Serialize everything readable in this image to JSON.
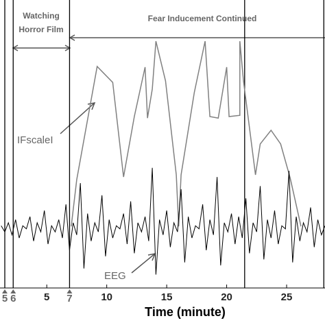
{
  "chart_data": {
    "type": "line",
    "x_label": "Time (minute)",
    "xlim": [
      1.1,
      28.2
    ],
    "ylim": [
      0,
      100
    ],
    "xticks": [
      5,
      10,
      15,
      20,
      25
    ],
    "markers": [
      {
        "x": 1.5,
        "label": "5"
      },
      {
        "x": 2.2,
        "label": "6"
      },
      {
        "x": 6.9,
        "label": "7"
      }
    ],
    "event_lines": [
      21.5,
      28.1
    ],
    "annotations": {
      "watching": [
        "Watching",
        "Horror Film"
      ],
      "fear": "Fear Inducement Continued",
      "ifscale": "IFscaleI",
      "eeg": "EEG"
    },
    "series": [
      {
        "name": "IFscaleI",
        "color": "#808080",
        "x": [
          7.04,
          7.5,
          9.2,
          10.5,
          11.4,
          12.3,
          13.2,
          13.4,
          13.8,
          14.1,
          14.9,
          15.8,
          16.0,
          16.2,
          17.3,
          18.2,
          18.6,
          19.3,
          20.0,
          20.2,
          21.1,
          21.1,
          21.4,
          22.4,
          22.8,
          23.7,
          24.5,
          25.3,
          26.2
        ],
        "values": [
          25.8,
          41.1,
          78.2,
          73.0,
          42.0,
          61.8,
          78.0,
          61.3,
          70.8,
          86.5,
          73.5,
          42.7,
          25.8,
          42.7,
          69.7,
          86.5,
          61.8,
          61.3,
          78.0,
          61.8,
          62.2,
          86.5,
          73.5,
          42.7,
          52.8,
          57.3,
          52.8,
          41.6,
          25.8
        ]
      },
      {
        "name": "EEG",
        "color": "#000000",
        "x": [
          1.2,
          1.5,
          1.8,
          2.1,
          2.4,
          2.7,
          3,
          3.3,
          3.6,
          3.9,
          4.2,
          4.5,
          4.8,
          5.1,
          5.4,
          5.7,
          6,
          6.3,
          6.6,
          6.9,
          7.2,
          7.5,
          7.8,
          8.1,
          8.4,
          8.7,
          9,
          9.3,
          9.6,
          9.9,
          10.2,
          10.5,
          10.8,
          11.1,
          11.4,
          11.7,
          12,
          12.3,
          12.6,
          12.9,
          13.2,
          13.5,
          13.8,
          14.1,
          14.4,
          14.7,
          15,
          15.3,
          15.6,
          15.9,
          16.2,
          16.5,
          16.8,
          17.1,
          17.4,
          17.7,
          18,
          18.3,
          18.6,
          18.9,
          19.2,
          19.5,
          19.8,
          20.1,
          20.4,
          20.7,
          21,
          21.3,
          21.6,
          21.9,
          22.2,
          22.5,
          22.8,
          23.1,
          23.4,
          23.7,
          24,
          24.3,
          24.6,
          24.9,
          25.2,
          25.5,
          25.8,
          26.1,
          26.4,
          26.7,
          27,
          27.3,
          27.6,
          27.9,
          28.2
        ],
        "values": [
          26,
          24,
          27,
          23,
          28,
          22,
          26,
          25,
          29,
          21,
          27,
          24,
          31,
          20,
          26,
          24,
          28,
          22,
          33,
          18,
          27,
          23,
          40,
          12,
          30,
          21,
          27,
          24,
          36,
          16,
          28,
          22,
          26,
          25,
          30,
          20,
          34,
          17,
          27,
          24,
          29,
          21,
          45,
          10,
          28,
          23,
          31,
          19,
          27,
          24,
          38,
          14,
          29,
          22,
          26,
          25,
          33,
          18,
          28,
          23,
          42,
          13,
          27,
          24,
          30,
          20,
          29,
          22,
          35,
          17,
          27,
          24,
          39,
          15,
          28,
          22,
          31,
          20,
          26,
          25,
          44,
          14,
          29,
          21,
          27,
          24,
          32,
          19,
          28,
          23,
          26
        ]
      }
    ]
  }
}
